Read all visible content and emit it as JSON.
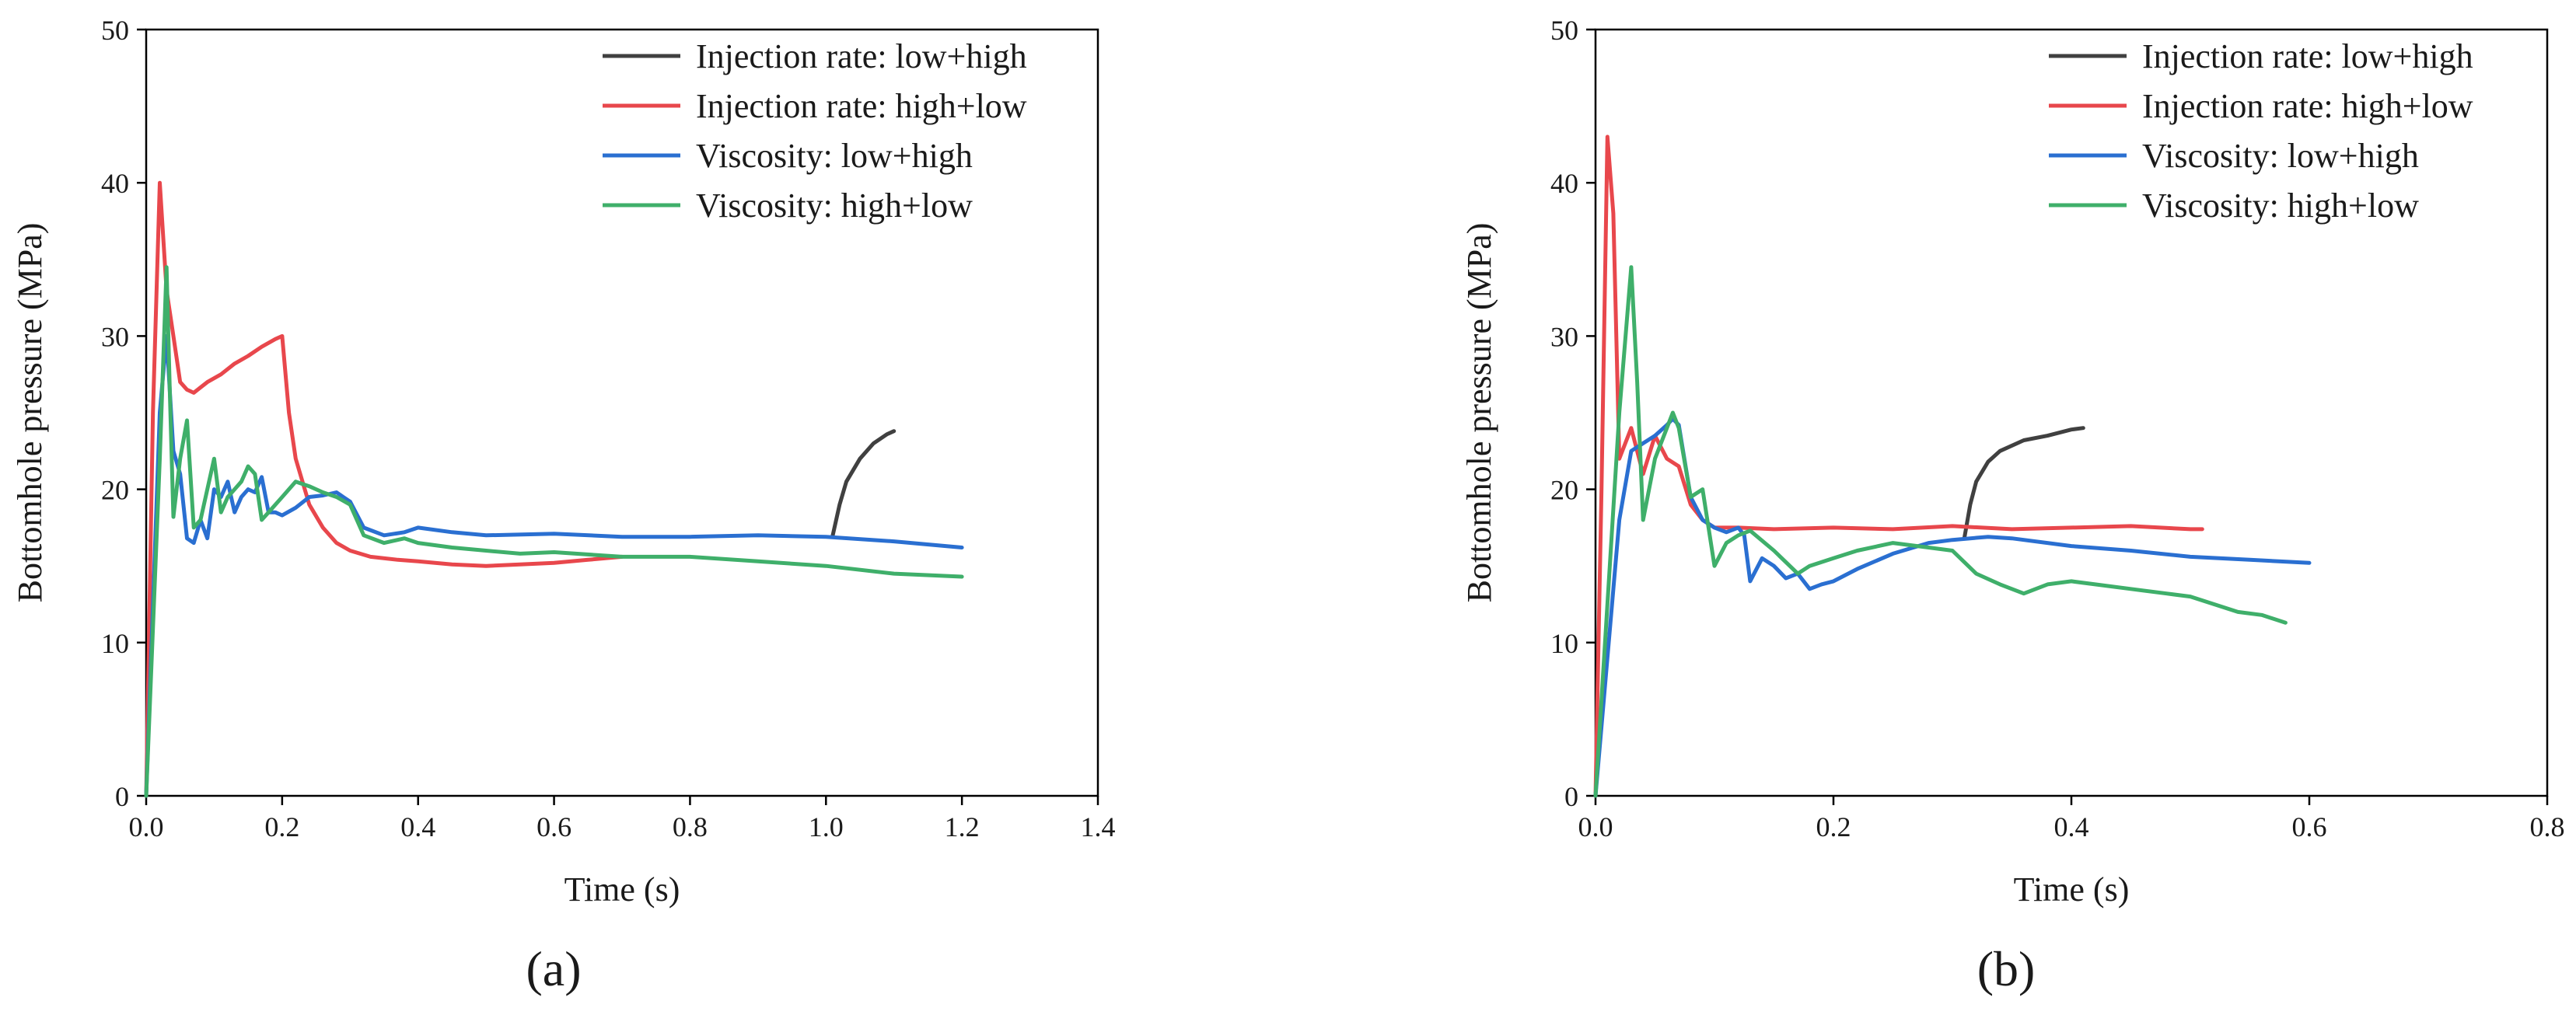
{
  "colors": {
    "injection_low_high": "#404040",
    "injection_high_low": "#e8474c",
    "viscosity_low_high": "#2a6fd1",
    "viscosity_high_low": "#3faf6a",
    "axis": "#000000"
  },
  "chart_data": [
    {
      "type": "line",
      "panel_label": "(a)",
      "xlabel": "Time (s)",
      "ylabel": "Bottomhole pressure (MPa)",
      "xlim": [
        0,
        1.4
      ],
      "ylim": [
        0,
        50
      ],
      "xticks": [
        "0.0",
        "0.2",
        "0.4",
        "0.6",
        "0.8",
        "1.0",
        "1.2",
        "1.4"
      ],
      "yticks": [
        "0",
        "10",
        "20",
        "30",
        "40",
        "50"
      ],
      "legend_position": "top-right",
      "series": [
        {
          "name": "Injection rate: low+high",
          "color_key": "injection_low_high",
          "x": [
            1.01,
            1.02,
            1.03,
            1.05,
            1.07,
            1.09,
            1.1
          ],
          "y": [
            17.0,
            19.0,
            20.5,
            22.0,
            23.0,
            23.6,
            23.8
          ]
        },
        {
          "name": "Injection rate: high+low",
          "color_key": "injection_high_low",
          "x": [
            0,
            0.01,
            0.02,
            0.03,
            0.04,
            0.05,
            0.06,
            0.07,
            0.09,
            0.11,
            0.13,
            0.15,
            0.17,
            0.19,
            0.2,
            0.21,
            0.22,
            0.24,
            0.26,
            0.28,
            0.3,
            0.33,
            0.37,
            0.4,
            0.45,
            0.5,
            0.55,
            0.6,
            0.65,
            0.7
          ],
          "y": [
            0,
            25,
            40.0,
            33.0,
            30.0,
            27.0,
            26.5,
            26.3,
            27.0,
            27.5,
            28.2,
            28.7,
            29.3,
            29.8,
            30.0,
            25.0,
            22.0,
            19.0,
            17.5,
            16.5,
            16.0,
            15.6,
            15.4,
            15.3,
            15.1,
            15.0,
            15.1,
            15.2,
            15.4,
            15.6
          ]
        },
        {
          "name": "Viscosity: low+high",
          "color_key": "viscosity_low_high",
          "x": [
            0,
            0.02,
            0.03,
            0.04,
            0.05,
            0.06,
            0.07,
            0.08,
            0.09,
            0.1,
            0.11,
            0.12,
            0.13,
            0.14,
            0.15,
            0.16,
            0.17,
            0.18,
            0.19,
            0.2,
            0.22,
            0.24,
            0.26,
            0.28,
            0.29,
            0.3,
            0.32,
            0.35,
            0.38,
            0.4,
            0.45,
            0.5,
            0.6,
            0.7,
            0.8,
            0.9,
            1.0,
            1.1,
            1.2
          ],
          "y": [
            0,
            25,
            30.0,
            22.5,
            21.0,
            16.8,
            16.5,
            18.0,
            16.8,
            20.0,
            19.5,
            20.5,
            18.5,
            19.5,
            20.0,
            19.8,
            20.8,
            18.5,
            18.5,
            18.3,
            18.8,
            19.5,
            19.6,
            19.8,
            19.5,
            19.2,
            17.5,
            17.0,
            17.2,
            17.5,
            17.2,
            17.0,
            17.1,
            16.9,
            16.9,
            17.0,
            16.9,
            16.6,
            16.2
          ]
        },
        {
          "name": "Viscosity: high+low",
          "color_key": "viscosity_high_low",
          "x": [
            0,
            0.02,
            0.03,
            0.035,
            0.04,
            0.05,
            0.06,
            0.07,
            0.08,
            0.1,
            0.11,
            0.12,
            0.13,
            0.14,
            0.15,
            0.16,
            0.17,
            0.18,
            0.2,
            0.22,
            0.24,
            0.26,
            0.28,
            0.3,
            0.32,
            0.35,
            0.38,
            0.4,
            0.45,
            0.5,
            0.55,
            0.6,
            0.7,
            0.8,
            0.9,
            1.0,
            1.1,
            1.2
          ],
          "y": [
            0,
            22,
            34.5,
            26.0,
            18.2,
            22.0,
            24.5,
            17.5,
            18.0,
            22.0,
            18.5,
            19.5,
            20.0,
            20.5,
            21.5,
            21.0,
            18.0,
            18.5,
            19.5,
            20.5,
            20.2,
            19.8,
            19.5,
            19.0,
            17.0,
            16.5,
            16.8,
            16.5,
            16.2,
            16.0,
            15.8,
            15.9,
            15.6,
            15.6,
            15.3,
            15.0,
            14.5,
            14.3
          ]
        }
      ]
    },
    {
      "type": "line",
      "panel_label": "(b)",
      "xlabel": "Time (s)",
      "ylabel": "Bottomhole pressure (MPa)",
      "xlim": [
        0,
        0.8
      ],
      "ylim": [
        0,
        50
      ],
      "xticks": [
        "0.0",
        "0.2",
        "0.4",
        "0.6",
        "0.8"
      ],
      "yticks": [
        "0",
        "10",
        "20",
        "30",
        "40",
        "50"
      ],
      "legend_position": "top-right",
      "series": [
        {
          "name": "Injection rate: low+high",
          "color_key": "injection_low_high",
          "x": [
            0.31,
            0.315,
            0.32,
            0.33,
            0.34,
            0.36,
            0.38,
            0.4,
            0.41
          ],
          "y": [
            16.8,
            19.0,
            20.5,
            21.8,
            22.5,
            23.2,
            23.5,
            23.9,
            24.0
          ]
        },
        {
          "name": "Injection rate: high+low",
          "color_key": "injection_high_low",
          "x": [
            0,
            0.005,
            0.01,
            0.015,
            0.02,
            0.025,
            0.03,
            0.04,
            0.05,
            0.06,
            0.07,
            0.08,
            0.09,
            0.1,
            0.12,
            0.15,
            0.2,
            0.25,
            0.3,
            0.35,
            0.4,
            0.45,
            0.5,
            0.51
          ],
          "y": [
            0,
            20,
            43.0,
            38.0,
            22.0,
            23.0,
            24.0,
            21.0,
            23.5,
            22.0,
            21.5,
            19.0,
            18.0,
            17.5,
            17.5,
            17.4,
            17.5,
            17.4,
            17.6,
            17.4,
            17.5,
            17.6,
            17.4,
            17.4
          ]
        },
        {
          "name": "Viscosity: low+high",
          "color_key": "viscosity_low_high",
          "x": [
            0,
            0.02,
            0.03,
            0.04,
            0.05,
            0.06,
            0.065,
            0.07,
            0.08,
            0.09,
            0.1,
            0.11,
            0.12,
            0.125,
            0.13,
            0.14,
            0.15,
            0.16,
            0.17,
            0.18,
            0.19,
            0.2,
            0.22,
            0.25,
            0.28,
            0.3,
            0.33,
            0.35,
            0.4,
            0.45,
            0.5,
            0.55,
            0.6
          ],
          "y": [
            0,
            18,
            22.5,
            23.0,
            23.5,
            24.2,
            24.6,
            24.2,
            19.5,
            18.0,
            17.5,
            17.2,
            17.5,
            17.0,
            14.0,
            15.5,
            15.0,
            14.2,
            14.5,
            13.5,
            13.8,
            14.0,
            14.8,
            15.8,
            16.5,
            16.7,
            16.9,
            16.8,
            16.3,
            16.0,
            15.6,
            15.4,
            15.2
          ]
        },
        {
          "name": "Viscosity: high+low",
          "color_key": "viscosity_high_low",
          "x": [
            0,
            0.02,
            0.03,
            0.035,
            0.04,
            0.05,
            0.06,
            0.065,
            0.07,
            0.08,
            0.09,
            0.1,
            0.11,
            0.12,
            0.13,
            0.15,
            0.17,
            0.18,
            0.2,
            0.22,
            0.25,
            0.28,
            0.3,
            0.32,
            0.34,
            0.36,
            0.37,
            0.38,
            0.4,
            0.42,
            0.45,
            0.48,
            0.5,
            0.52,
            0.54,
            0.56,
            0.58
          ],
          "y": [
            0,
            25,
            34.5,
            27.0,
            18.0,
            22.0,
            24.0,
            25.0,
            24.0,
            19.5,
            20.0,
            15.0,
            16.5,
            17.0,
            17.3,
            16.0,
            14.5,
            15.0,
            15.5,
            16.0,
            16.5,
            16.2,
            16.0,
            14.5,
            13.8,
            13.2,
            13.5,
            13.8,
            14.0,
            13.8,
            13.5,
            13.2,
            13.0,
            12.5,
            12.0,
            11.8,
            11.3
          ]
        }
      ]
    }
  ]
}
